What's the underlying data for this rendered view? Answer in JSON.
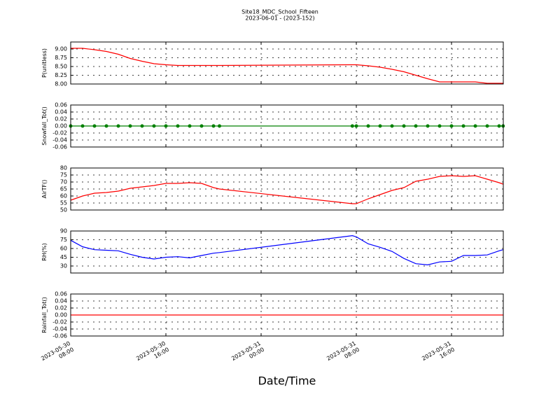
{
  "title": "Site18_MDC_School_Fifteen",
  "subtitle": "2023-06-01 - (2023-152)",
  "xlabel": "Date/Time",
  "chart_data": [
    {
      "type": "line",
      "ylabel": "P(unitless)",
      "x": [
        "2023-05-30 08:00",
        "2023-05-30 09:00",
        "2023-05-30 10:00",
        "2023-05-30 11:00",
        "2023-05-30 12:00",
        "2023-05-30 13:00",
        "2023-05-30 14:00",
        "2023-05-30 15:00",
        "2023-05-30 16:00",
        "2023-05-30 17:00",
        "2023-05-30 18:00",
        "2023-05-30 19:00",
        "2023-05-30 20:00",
        "2023-05-30 20:30",
        "2023-05-31 07:40",
        "2023-05-31 08:00",
        "2023-05-31 09:00",
        "2023-05-31 10:00",
        "2023-05-31 11:00",
        "2023-05-31 12:00",
        "2023-05-31 13:00",
        "2023-05-31 14:00",
        "2023-05-31 15:00",
        "2023-05-31 16:00",
        "2023-05-31 17:00",
        "2023-05-31 18:00",
        "2023-05-31 19:00",
        "2023-05-31 20:00",
        "2023-05-31 20:20"
      ],
      "series": [
        {
          "color": "#ff0000",
          "values": [
            9.02,
            9.02,
            8.98,
            8.93,
            8.85,
            8.73,
            8.65,
            8.58,
            8.55,
            8.53,
            8.53,
            8.53,
            8.53,
            8.53,
            8.55,
            8.55,
            8.52,
            8.48,
            8.42,
            8.35,
            8.25,
            8.15,
            8.06,
            8.06,
            8.06,
            8.06,
            8.02,
            8.02,
            8.02
          ]
        }
      ],
      "xlim": [
        "2023-05-30 08:00",
        "2023-05-31 20:21"
      ],
      "xticks": [
        "2023-05-30 08:00",
        "2023-05-30 16:00",
        "2023-05-31 00:00",
        "2023-05-31 08:00",
        "2023-05-31 16:00"
      ],
      "ylim": [
        8.0,
        9.2
      ],
      "yticks": [
        {
          "value": 8.0,
          "label": "8.00"
        },
        {
          "value": 8.25,
          "label": "8.25"
        },
        {
          "value": 8.5,
          "label": "8.50"
        },
        {
          "value": 8.75,
          "label": "8.75"
        },
        {
          "value": 9.0,
          "label": "9.00"
        }
      ],
      "grid": true
    },
    {
      "type": "line",
      "ylabel": "Snowfall_Tot()",
      "x": [
        "2023-05-30 08:00",
        "2023-05-30 09:00",
        "2023-05-30 10:00",
        "2023-05-30 11:00",
        "2023-05-30 12:00",
        "2023-05-30 13:00",
        "2023-05-30 14:00",
        "2023-05-30 15:00",
        "2023-05-30 16:00",
        "2023-05-30 17:00",
        "2023-05-30 18:00",
        "2023-05-30 19:00",
        "2023-05-30 20:00",
        "2023-05-30 20:30",
        "2023-05-31 07:40",
        "2023-05-31 08:00",
        "2023-05-31 09:00",
        "2023-05-31 10:00",
        "2023-05-31 11:00",
        "2023-05-31 12:00",
        "2023-05-31 13:00",
        "2023-05-31 14:00",
        "2023-05-31 15:00",
        "2023-05-31 16:00",
        "2023-05-31 17:00",
        "2023-05-31 18:00",
        "2023-05-31 19:00",
        "2023-05-31 20:00",
        "2023-05-31 20:20"
      ],
      "series": [
        {
          "color": "#008000",
          "marker": "o",
          "values": [
            0,
            0,
            0,
            0,
            0,
            0,
            0,
            0,
            0,
            0,
            0,
            0,
            0,
            0,
            0,
            0,
            0,
            0,
            0,
            0,
            0,
            0,
            0,
            0,
            0,
            0,
            0,
            0,
            0
          ]
        }
      ],
      "xlim": [
        "2023-05-30 08:00",
        "2023-05-31 20:21"
      ],
      "xticks": [
        "2023-05-30 08:00",
        "2023-05-30 16:00",
        "2023-05-31 00:00",
        "2023-05-31 08:00",
        "2023-05-31 16:00"
      ],
      "ylim": [
        -0.06,
        0.06
      ],
      "yticks": [
        {
          "value": -0.06,
          "label": "-0.06"
        },
        {
          "value": -0.04,
          "label": "-0.04"
        },
        {
          "value": -0.02,
          "label": "-0.02"
        },
        {
          "value": 0,
          "label": "0.00"
        },
        {
          "value": 0.02,
          "label": "0.02"
        },
        {
          "value": 0.04,
          "label": "0.04"
        },
        {
          "value": 0.06,
          "label": "0.06"
        }
      ],
      "grid": true
    },
    {
      "type": "line",
      "ylabel": "AirTF()",
      "x": [
        "2023-05-30 08:00",
        "2023-05-30 09:00",
        "2023-05-30 10:00",
        "2023-05-30 11:00",
        "2023-05-30 12:00",
        "2023-05-30 13:00",
        "2023-05-30 14:00",
        "2023-05-30 15:00",
        "2023-05-30 16:00",
        "2023-05-30 17:00",
        "2023-05-30 18:00",
        "2023-05-30 19:00",
        "2023-05-30 20:00",
        "2023-05-30 20:30",
        "2023-05-31 07:40",
        "2023-05-31 08:00",
        "2023-05-31 09:00",
        "2023-05-31 10:00",
        "2023-05-31 11:00",
        "2023-05-31 12:00",
        "2023-05-31 13:00",
        "2023-05-31 14:00",
        "2023-05-31 15:00",
        "2023-05-31 16:00",
        "2023-05-31 17:00",
        "2023-05-31 18:00",
        "2023-05-31 19:00",
        "2023-05-31 20:00",
        "2023-05-31 20:20"
      ],
      "series": [
        {
          "color": "#ff0000",
          "values": [
            57,
            60,
            62,
            62.5,
            63.5,
            65.5,
            66.5,
            67.5,
            69,
            69,
            69.5,
            69,
            66,
            65,
            54.5,
            54.5,
            58,
            61,
            64,
            66,
            70.5,
            72,
            74,
            74.5,
            74,
            74.5,
            72,
            69.5,
            68.5
          ]
        }
      ],
      "xlim": [
        "2023-05-30 08:00",
        "2023-05-31 20:21"
      ],
      "xticks": [
        "2023-05-30 08:00",
        "2023-05-30 16:00",
        "2023-05-31 00:00",
        "2023-05-31 08:00",
        "2023-05-31 16:00"
      ],
      "ylim": [
        50,
        80
      ],
      "yticks": [
        50,
        55,
        60,
        65,
        70,
        75,
        80
      ],
      "grid": true
    },
    {
      "type": "line",
      "ylabel": "RH(%)",
      "x": [
        "2023-05-30 08:00",
        "2023-05-30 09:00",
        "2023-05-30 10:00",
        "2023-05-30 11:00",
        "2023-05-30 12:00",
        "2023-05-30 13:00",
        "2023-05-30 14:00",
        "2023-05-30 15:00",
        "2023-05-30 16:00",
        "2023-05-30 17:00",
        "2023-05-30 18:00",
        "2023-05-30 19:00",
        "2023-05-30 20:00",
        "2023-05-30 20:30",
        "2023-05-31 07:40",
        "2023-05-31 08:00",
        "2023-05-31 09:00",
        "2023-05-31 10:00",
        "2023-05-31 11:00",
        "2023-05-31 12:00",
        "2023-05-31 13:00",
        "2023-05-31 14:00",
        "2023-05-31 15:00",
        "2023-05-31 16:00",
        "2023-05-31 17:00",
        "2023-05-31 18:00",
        "2023-05-31 19:00",
        "2023-05-31 20:00",
        "2023-05-31 20:20"
      ],
      "series": [
        {
          "color": "#0000ff",
          "values": [
            74,
            63,
            58,
            57,
            56,
            50,
            45,
            42,
            45,
            46,
            44,
            48,
            52,
            53,
            82,
            80,
            68,
            62,
            55,
            43,
            34,
            32,
            37,
            38,
            48,
            48,
            49,
            56,
            58
          ]
        }
      ],
      "xlim": [
        "2023-05-30 08:00",
        "2023-05-31 20:21"
      ],
      "xticks": [
        "2023-05-30 08:00",
        "2023-05-30 16:00",
        "2023-05-31 00:00",
        "2023-05-31 08:00",
        "2023-05-31 16:00"
      ],
      "ylim": [
        18,
        90
      ],
      "yticks": [
        30,
        45,
        60,
        75,
        90
      ],
      "grid": true
    },
    {
      "type": "line",
      "ylabel": "Rainfall_Tot()",
      "x": [
        "2023-05-30 08:00",
        "2023-05-30 09:00",
        "2023-05-30 10:00",
        "2023-05-30 11:00",
        "2023-05-30 12:00",
        "2023-05-30 13:00",
        "2023-05-30 14:00",
        "2023-05-30 15:00",
        "2023-05-30 16:00",
        "2023-05-30 17:00",
        "2023-05-30 18:00",
        "2023-05-30 19:00",
        "2023-05-30 20:00",
        "2023-05-30 20:30",
        "2023-05-31 07:40",
        "2023-05-31 08:00",
        "2023-05-31 09:00",
        "2023-05-31 10:00",
        "2023-05-31 11:00",
        "2023-05-31 12:00",
        "2023-05-31 13:00",
        "2023-05-31 14:00",
        "2023-05-31 15:00",
        "2023-05-31 16:00",
        "2023-05-31 17:00",
        "2023-05-31 18:00",
        "2023-05-31 19:00",
        "2023-05-31 20:00",
        "2023-05-31 20:20"
      ],
      "series": [
        {
          "color": "#ff0000",
          "values": [
            0,
            0,
            0,
            0,
            0,
            0,
            0,
            0,
            0,
            0,
            0,
            0,
            0,
            0,
            0,
            0,
            0,
            0,
            0,
            0,
            0,
            0,
            0,
            0,
            0,
            0,
            0,
            0,
            0
          ]
        }
      ],
      "xlim": [
        "2023-05-30 08:00",
        "2023-05-31 20:21"
      ],
      "xticks": [
        "2023-05-30 08:00",
        "2023-05-30 16:00",
        "2023-05-31 00:00",
        "2023-05-31 08:00",
        "2023-05-31 16:00"
      ],
      "ylim": [
        -0.06,
        0.06
      ],
      "yticks": [
        {
          "value": -0.06,
          "label": "-0.06"
        },
        {
          "value": -0.04,
          "label": "-0.04"
        },
        {
          "value": -0.02,
          "label": "-0.02"
        },
        {
          "value": 0,
          "label": "0.00"
        },
        {
          "value": 0.02,
          "label": "0.02"
        },
        {
          "value": 0.04,
          "label": "0.04"
        },
        {
          "value": 0.06,
          "label": "0.06"
        }
      ],
      "grid": true
    }
  ]
}
